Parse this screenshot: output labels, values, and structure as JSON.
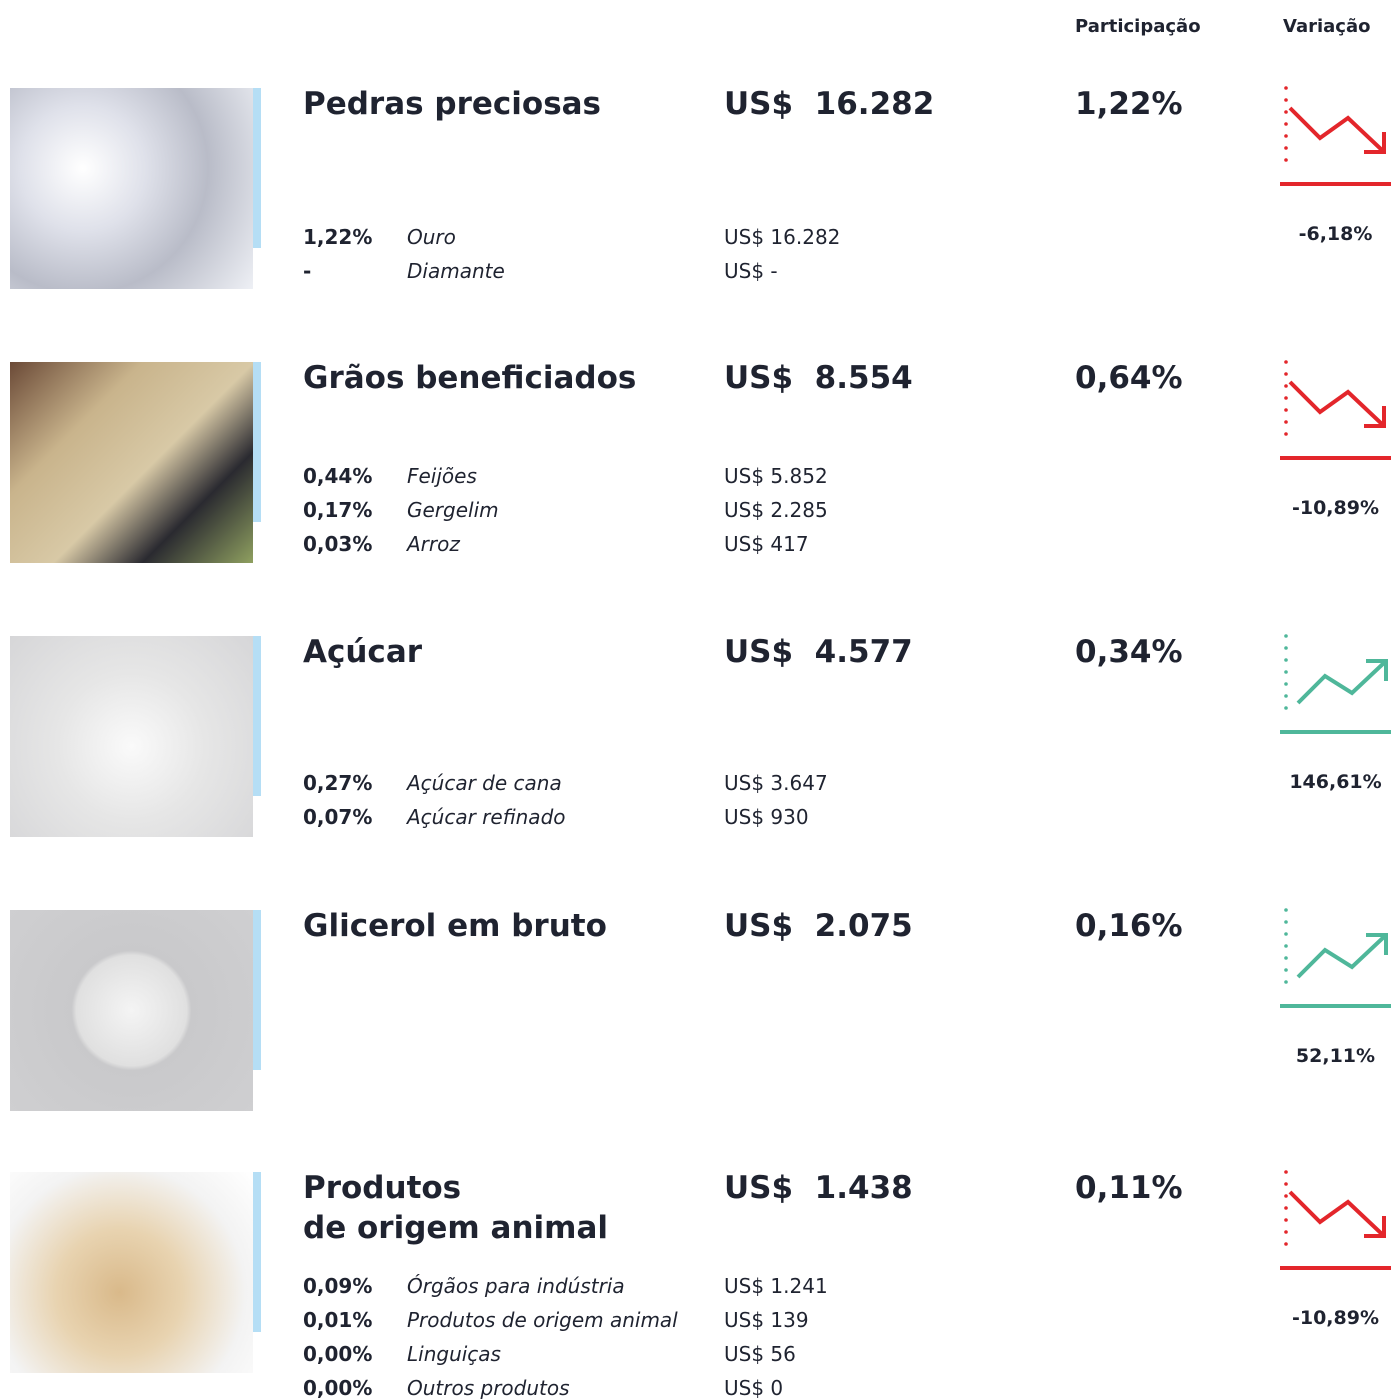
{
  "header": {
    "share": "Participação",
    "variation": "Variação"
  },
  "currency": "US$",
  "colors": {
    "down": "#e3262b",
    "up": "#4fb79a"
  },
  "items": [
    {
      "name": "Pedras preciosas",
      "amount": "16.282",
      "share": "1,22%",
      "variation": "-6,18%",
      "trend": "down",
      "subs": [
        {
          "share": "1,22%",
          "name": "Ouro",
          "amount": "16.282"
        },
        {
          "share": "-",
          "name": "Diamante",
          "amount": "-"
        }
      ]
    },
    {
      "name": "Grãos beneficiados",
      "amount": "8.554",
      "share": "0,64%",
      "variation": "-10,89%",
      "trend": "down",
      "subs": [
        {
          "share": "0,44%",
          "name": "Feijões",
          "amount": "5.852"
        },
        {
          "share": "0,17%",
          "name": "Gergelim",
          "amount": "2.285"
        },
        {
          "share": "0,03%",
          "name": "Arroz",
          "amount": "417"
        }
      ]
    },
    {
      "name": "Açúcar",
      "amount": "4.577",
      "share": "0,34%",
      "variation": "146,61%",
      "trend": "up",
      "subs": [
        {
          "share": "0,27%",
          "name": "Açúcar de cana",
          "amount": "3.647"
        },
        {
          "share": "0,07%",
          "name": "Açúcar refinado",
          "amount": "930"
        }
      ]
    },
    {
      "name": "Glicerol em bruto",
      "amount": "2.075",
      "share": "0,16%",
      "variation": "52,11%",
      "trend": "up",
      "subs": []
    },
    {
      "name": "Produtos\nde origem animal",
      "amount": "1.438",
      "share": "0,11%",
      "variation": "-10,89%",
      "trend": "down",
      "subs": [
        {
          "share": "0,09%",
          "name": "Órgãos para indústria",
          "amount": "1.241"
        },
        {
          "share": "0,01%",
          "name": "Produtos de origem animal",
          "amount": "139"
        },
        {
          "share": "0,00%",
          "name": "Linguiças",
          "amount": "56"
        },
        {
          "share": "0,00%",
          "name": "Outros produtos",
          "amount": "0"
        }
      ]
    }
  ]
}
